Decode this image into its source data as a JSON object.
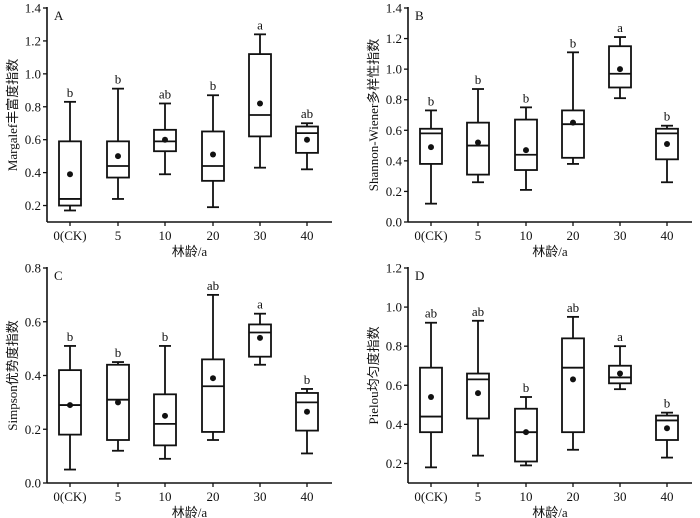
{
  "chart_data": [
    {
      "type": "box",
      "panel": "A",
      "ylabel": "Margalef丰富度指数",
      "xlabel": "林龄/a",
      "categories": [
        "0(CK)",
        "5",
        "10",
        "20",
        "30",
        "40"
      ],
      "ylim": [
        0.1,
        1.4
      ],
      "yticks": [
        0.2,
        0.4,
        0.6,
        0.8,
        1.0,
        1.2,
        1.4
      ],
      "ytick_labels": [
        "0.2",
        "0.4",
        "0.6",
        "0.8",
        "1.0",
        "1.2",
        "1.4"
      ],
      "boxes": [
        {
          "min": 0.17,
          "q1": 0.2,
          "median": 0.24,
          "q3": 0.59,
          "max": 0.83,
          "mean": 0.39,
          "letter": "b"
        },
        {
          "min": 0.24,
          "q1": 0.37,
          "median": 0.44,
          "q3": 0.59,
          "max": 0.91,
          "mean": 0.5,
          "letter": "b"
        },
        {
          "min": 0.39,
          "q1": 0.53,
          "median": 0.59,
          "q3": 0.66,
          "max": 0.82,
          "mean": 0.6,
          "letter": "ab"
        },
        {
          "min": 0.19,
          "q1": 0.35,
          "median": 0.44,
          "q3": 0.65,
          "max": 0.87,
          "mean": 0.51,
          "letter": "b"
        },
        {
          "min": 0.43,
          "q1": 0.62,
          "median": 0.75,
          "q3": 1.12,
          "max": 1.24,
          "mean": 0.82,
          "letter": "a"
        },
        {
          "min": 0.42,
          "q1": 0.52,
          "median": 0.64,
          "q3": 0.68,
          "max": 0.7,
          "mean": 0.6,
          "letter": "ab"
        }
      ]
    },
    {
      "type": "box",
      "panel": "B",
      "ylabel": "Shannon-Wiener多样性指数",
      "xlabel": "林龄/a",
      "categories": [
        "0(CK)",
        "5",
        "10",
        "20",
        "30",
        "40"
      ],
      "ylim": [
        0.0,
        1.4
      ],
      "yticks": [
        0.0,
        0.2,
        0.4,
        0.6,
        0.8,
        1.0,
        1.2,
        1.4
      ],
      "ytick_labels": [
        "0.0",
        "0.2",
        "0.4",
        "0.6",
        "0.8",
        "1.0",
        "1.2",
        "1.4"
      ],
      "boxes": [
        {
          "min": 0.12,
          "q1": 0.38,
          "median": 0.58,
          "q3": 0.61,
          "max": 0.73,
          "mean": 0.49,
          "letter": "b"
        },
        {
          "min": 0.26,
          "q1": 0.31,
          "median": 0.5,
          "q3": 0.65,
          "max": 0.87,
          "mean": 0.52,
          "letter": "b"
        },
        {
          "min": 0.21,
          "q1": 0.34,
          "median": 0.44,
          "q3": 0.67,
          "max": 0.75,
          "mean": 0.47,
          "letter": "b"
        },
        {
          "min": 0.38,
          "q1": 0.42,
          "median": 0.64,
          "q3": 0.73,
          "max": 1.11,
          "mean": 0.65,
          "letter": "b"
        },
        {
          "min": 0.81,
          "q1": 0.88,
          "median": 0.97,
          "q3": 1.15,
          "max": 1.21,
          "mean": 1.0,
          "letter": "a"
        },
        {
          "min": 0.26,
          "q1": 0.41,
          "median": 0.58,
          "q3": 0.61,
          "max": 0.63,
          "mean": 0.51,
          "letter": "b"
        }
      ]
    },
    {
      "type": "box",
      "panel": "C",
      "ylabel": "Simpson优势度指数",
      "xlabel": "林龄/a",
      "categories": [
        "0(CK)",
        "5",
        "10",
        "20",
        "30",
        "40"
      ],
      "ylim": [
        0.0,
        0.8
      ],
      "yticks": [
        0.0,
        0.2,
        0.4,
        0.6,
        0.8
      ],
      "ytick_labels": [
        "0.0",
        "0.2",
        "0.4",
        "0.6",
        "0.8"
      ],
      "boxes": [
        {
          "min": 0.05,
          "q1": 0.18,
          "median": 0.29,
          "q3": 0.42,
          "max": 0.51,
          "mean": 0.29,
          "letter": "b"
        },
        {
          "min": 0.12,
          "q1": 0.16,
          "median": 0.31,
          "q3": 0.44,
          "max": 0.45,
          "mean": 0.3,
          "letter": "b"
        },
        {
          "min": 0.09,
          "q1": 0.14,
          "median": 0.22,
          "q3": 0.33,
          "max": 0.51,
          "mean": 0.25,
          "letter": "b"
        },
        {
          "min": 0.16,
          "q1": 0.19,
          "median": 0.36,
          "q3": 0.46,
          "max": 0.7,
          "mean": 0.39,
          "letter": "ab"
        },
        {
          "min": 0.44,
          "q1": 0.47,
          "median": 0.56,
          "q3": 0.59,
          "max": 0.63,
          "mean": 0.54,
          "letter": "a"
        },
        {
          "min": 0.11,
          "q1": 0.195,
          "median": 0.3,
          "q3": 0.335,
          "max": 0.35,
          "mean": 0.265,
          "letter": "b"
        }
      ]
    },
    {
      "type": "box",
      "panel": "D",
      "ylabel": "Pielou均匀度指数",
      "xlabel": "林龄/a",
      "categories": [
        "0(CK)",
        "5",
        "10",
        "20",
        "30",
        "40"
      ],
      "ylim": [
        0.1,
        1.2
      ],
      "yticks": [
        0.2,
        0.4,
        0.6,
        0.8,
        1.0,
        1.2
      ],
      "ytick_labels": [
        "0.2",
        "0.4",
        "0.6",
        "0.8",
        "1.0",
        "1.2"
      ],
      "boxes": [
        {
          "min": 0.18,
          "q1": 0.36,
          "median": 0.44,
          "q3": 0.69,
          "max": 0.92,
          "mean": 0.54,
          "letter": "ab"
        },
        {
          "min": 0.24,
          "q1": 0.43,
          "median": 0.63,
          "q3": 0.66,
          "max": 0.93,
          "mean": 0.56,
          "letter": "ab"
        },
        {
          "min": 0.19,
          "q1": 0.21,
          "median": 0.36,
          "q3": 0.48,
          "max": 0.54,
          "mean": 0.36,
          "letter": "b"
        },
        {
          "min": 0.27,
          "q1": 0.36,
          "median": 0.69,
          "q3": 0.84,
          "max": 0.95,
          "mean": 0.63,
          "letter": "ab"
        },
        {
          "min": 0.58,
          "q1": 0.61,
          "median": 0.64,
          "q3": 0.7,
          "max": 0.8,
          "mean": 0.66,
          "letter": "a"
        },
        {
          "min": 0.23,
          "q1": 0.32,
          "median": 0.42,
          "q3": 0.445,
          "max": 0.46,
          "mean": 0.38,
          "letter": "b"
        }
      ]
    }
  ]
}
